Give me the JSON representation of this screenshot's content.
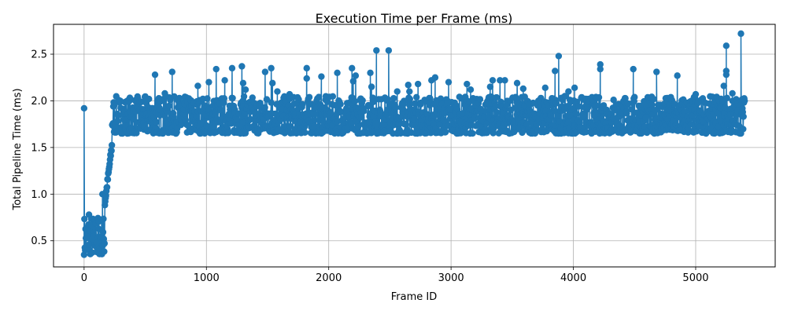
{
  "chart_data": {
    "type": "line",
    "title": "Execution Time per Frame (ms)",
    "xlabel": "Frame ID",
    "ylabel": "Total Pipeline Time (ms)",
    "xlim": [
      -250,
      5650
    ],
    "ylim": [
      0.22,
      2.82
    ],
    "xticks": [
      0,
      1000,
      2000,
      3000,
      4000,
      5000
    ],
    "yticks": [
      0.5,
      1.0,
      1.5,
      2.0,
      2.5
    ],
    "xtick_labels": [
      "0",
      "1000",
      "2000",
      "3000",
      "4000",
      "5000"
    ],
    "ytick_labels": [
      "0.5",
      "1.0",
      "1.5",
      "2.0",
      "2.5"
    ],
    "grid": true,
    "series_color": "#1f77b4",
    "marker": "circle",
    "frame_range": [
      0,
      5400
    ],
    "phases": [
      {
        "x_start": 0,
        "x_end": 170,
        "y_min": 0.35,
        "y_max": 0.78
      },
      {
        "x_start": 170,
        "x_end": 230,
        "y_min": 0.9,
        "y_max": 1.55
      },
      {
        "x_start": 230,
        "x_end": 5400,
        "y_min": 1.65,
        "y_max": 2.05
      }
    ],
    "peaks": [
      {
        "x": 0,
        "y": 1.92
      },
      {
        "x": 40,
        "y": 0.78
      },
      {
        "x": 150,
        "y": 1.0
      },
      {
        "x": 580,
        "y": 2.28
      },
      {
        "x": 660,
        "y": 2.08
      },
      {
        "x": 720,
        "y": 2.31
      },
      {
        "x": 930,
        "y": 2.16
      },
      {
        "x": 1020,
        "y": 2.2
      },
      {
        "x": 1080,
        "y": 2.34
      },
      {
        "x": 1150,
        "y": 2.22
      },
      {
        "x": 1210,
        "y": 2.35
      },
      {
        "x": 1290,
        "y": 2.37
      },
      {
        "x": 1300,
        "y": 2.19
      },
      {
        "x": 1320,
        "y": 2.12
      },
      {
        "x": 1480,
        "y": 2.31
      },
      {
        "x": 1530,
        "y": 2.35
      },
      {
        "x": 1540,
        "y": 2.19
      },
      {
        "x": 1580,
        "y": 2.1
      },
      {
        "x": 1680,
        "y": 2.07
      },
      {
        "x": 1820,
        "y": 2.35
      },
      {
        "x": 1820,
        "y": 2.24
      },
      {
        "x": 1940,
        "y": 2.26
      },
      {
        "x": 2070,
        "y": 2.3
      },
      {
        "x": 2190,
        "y": 2.35
      },
      {
        "x": 2200,
        "y": 2.21
      },
      {
        "x": 2220,
        "y": 2.27
      },
      {
        "x": 2340,
        "y": 2.3
      },
      {
        "x": 2350,
        "y": 2.15
      },
      {
        "x": 2390,
        "y": 2.54
      },
      {
        "x": 2490,
        "y": 2.54
      },
      {
        "x": 2560,
        "y": 2.1
      },
      {
        "x": 2650,
        "y": 2.17
      },
      {
        "x": 2660,
        "y": 2.1
      },
      {
        "x": 2730,
        "y": 2.18
      },
      {
        "x": 2840,
        "y": 2.22
      },
      {
        "x": 2870,
        "y": 2.25
      },
      {
        "x": 2980,
        "y": 2.2
      },
      {
        "x": 3130,
        "y": 2.18
      },
      {
        "x": 3160,
        "y": 2.12
      },
      {
        "x": 3320,
        "y": 2.15
      },
      {
        "x": 3340,
        "y": 2.22
      },
      {
        "x": 3400,
        "y": 2.22
      },
      {
        "x": 3440,
        "y": 2.22
      },
      {
        "x": 3540,
        "y": 2.19
      },
      {
        "x": 3590,
        "y": 2.13
      },
      {
        "x": 3770,
        "y": 2.14
      },
      {
        "x": 3850,
        "y": 2.32
      },
      {
        "x": 3880,
        "y": 2.48
      },
      {
        "x": 3960,
        "y": 2.1
      },
      {
        "x": 4010,
        "y": 2.14
      },
      {
        "x": 4220,
        "y": 2.39
      },
      {
        "x": 4220,
        "y": 2.34
      },
      {
        "x": 4490,
        "y": 2.34
      },
      {
        "x": 4680,
        "y": 2.31
      },
      {
        "x": 4850,
        "y": 2.27
      },
      {
        "x": 5000,
        "y": 2.07
      },
      {
        "x": 5230,
        "y": 2.16
      },
      {
        "x": 5250,
        "y": 2.59
      },
      {
        "x": 5250,
        "y": 2.32
      },
      {
        "x": 5250,
        "y": 2.28
      },
      {
        "x": 5300,
        "y": 2.08
      },
      {
        "x": 5370,
        "y": 2.72
      },
      {
        "x": 5400,
        "y": 2.0
      }
    ]
  }
}
